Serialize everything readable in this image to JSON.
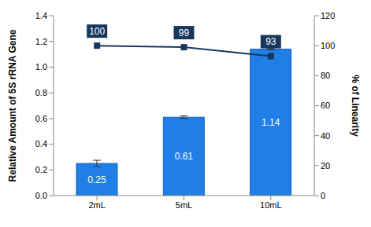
{
  "chart_data": {
    "type": "bar",
    "categories": [
      "2mL",
      "5mL",
      "10mL"
    ],
    "y_label": "Relative Amount of 5S rRNA Gene",
    "y2_label": "% of Linearity",
    "ylim": [
      0,
      1.4
    ],
    "yticks": [
      {
        "value": 0,
        "label": "0.0"
      },
      0.2,
      0.4,
      0.6,
      0.8,
      {
        "value": 1,
        "label": "1.0"
      },
      1.2,
      1.4
    ],
    "y2lim": [
      0,
      120
    ],
    "y2ticks": [
      0,
      20,
      40,
      60,
      80,
      100,
      120
    ],
    "grid": false,
    "data_labels": true,
    "series": [
      {
        "type": "bar",
        "color": "#1f7fe6",
        "values": [
          0.25,
          0.61,
          1.14
        ],
        "error": [
          0.025,
          0.01,
          0.005
        ]
      },
      {
        "type": "line",
        "axis": "y2",
        "color": "#17375e",
        "marker": "square",
        "values": [
          100,
          99,
          93
        ]
      }
    ]
  }
}
